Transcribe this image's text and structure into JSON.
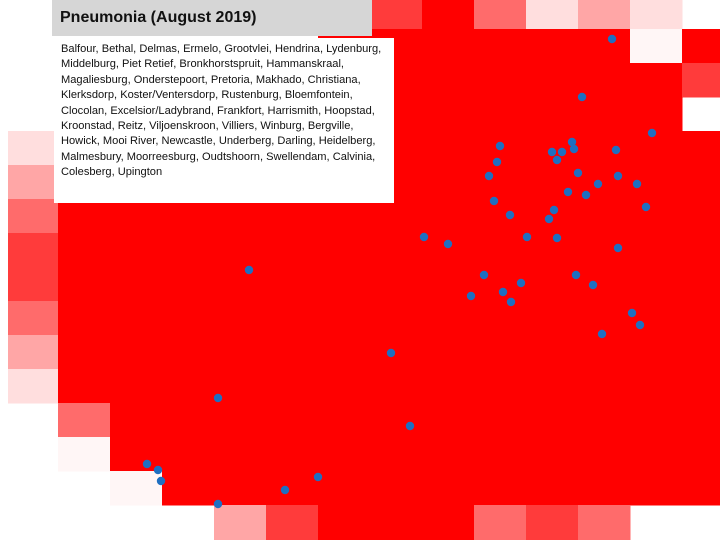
{
  "map": {
    "title": "Pneumonia (August 2019)",
    "towns_text": "Balfour, Bethal, Delmas, Ermelo, Grootvlei, Hendrina, Lydenburg, Middelburg, Piet Retief, Bronkhorstspruit, Hammanskraal, Magaliesburg, Onderstepoort, Pretoria, Makhado, Christiana, Klerksdorp, Koster/Ventersdorp, Rustenburg, Bloemfontein, Clocolan, Excelsior/Ladybrand, Frankfort, Harrismith, Hoopstad, Kroonstad, Reitz, Viljoenskroon, Villiers, Winburg, Bergville, Howick, Mooi River, Newcastle, Underberg, Darling, Heidelberg, Malmesbury, Moorreesburg, Oudtshoorn, Swellendam, Calvinia, Colesberg, Upington",
    "colors": {
      "max": "#ff0000",
      "level_4": "#ff3b3b",
      "level_3": "#ff6b6b",
      "level_2": "#ffa6a6",
      "level_1": "#ffdede",
      "level_0": "#fff6f6",
      "site_marker": "#1f6fc1",
      "title_bar": "#d6d6d6"
    },
    "site_marker_icon": "site-marker-icon"
  }
}
